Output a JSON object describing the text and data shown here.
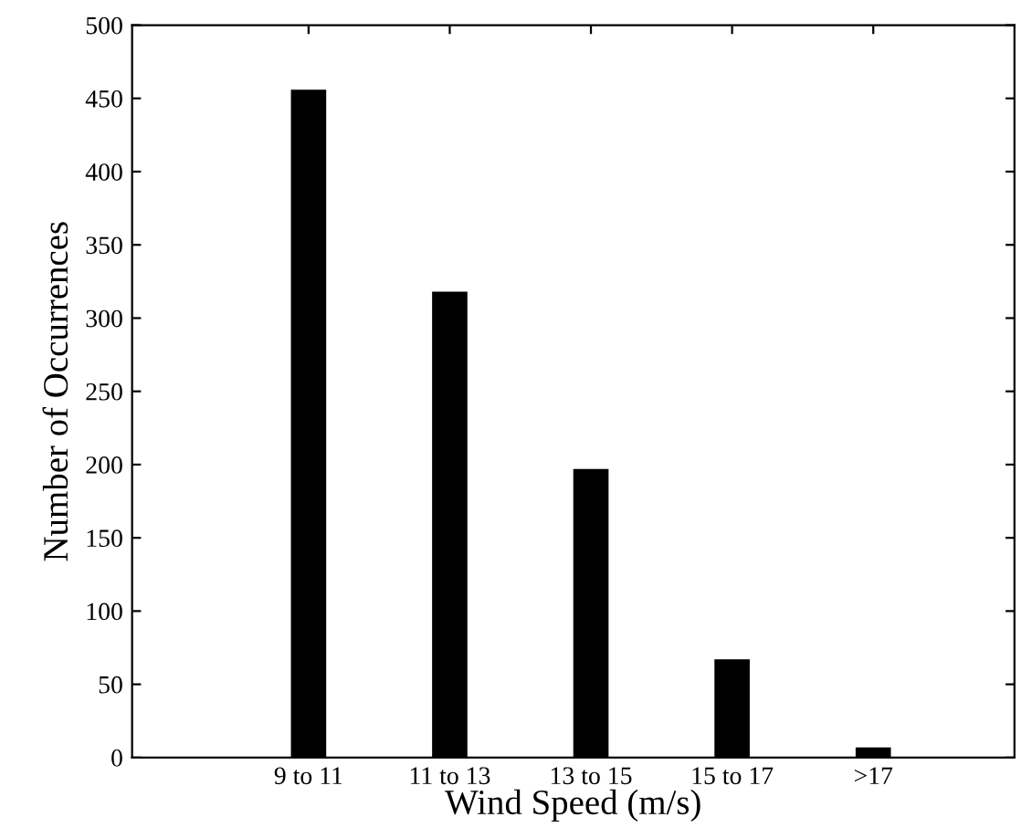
{
  "chart_data": {
    "type": "bar",
    "xlabel": "Wind Speed (m/s)",
    "ylabel": "Number of Occurrences",
    "categories": [
      "9 to 11",
      "11 to 13",
      "13 to 15",
      "15 to 17",
      ">17"
    ],
    "values": [
      456,
      318,
      197,
      67,
      7
    ],
    "color": "#000000",
    "ylim": [
      0,
      500
    ],
    "yticks": [
      0,
      50,
      100,
      150,
      200,
      250,
      300,
      350,
      400,
      450,
      500
    ],
    "grid": false,
    "legend": false
  }
}
